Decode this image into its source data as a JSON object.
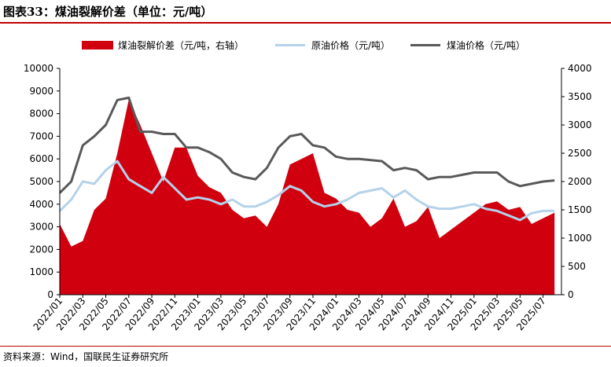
{
  "title": "图表33：煤油裂解价差（单位：元/吨）",
  "source": "资料来源：Wind，国联民生证券研究所",
  "chart_data": {
    "type": "area",
    "grid": false,
    "legend_position": "top",
    "categories": [
      "2022/01",
      "2022/03",
      "2022/05",
      "2022/07",
      "2022/09",
      "2022/11",
      "2023/01",
      "2023/03",
      "2023/05",
      "2023/07",
      "2023/09",
      "2023/11",
      "2024/01",
      "2024/03",
      "2024/05",
      "2024/07",
      "2024/09",
      "2024/11",
      "2025/01",
      "2025/03",
      "2025/05",
      "2025/07"
    ],
    "y_left": {
      "ylim": [
        0,
        10000
      ],
      "ticks": [
        0,
        1000,
        2000,
        3000,
        4000,
        5000,
        6000,
        7000,
        8000,
        9000,
        10000
      ]
    },
    "y_right": {
      "ylim": [
        0,
        4000
      ],
      "ticks": [
        0,
        500,
        1000,
        1500,
        2000,
        2500,
        3000,
        3500,
        4000
      ]
    },
    "series": [
      {
        "name": "煤油裂解价差（元/吨，右轴）",
        "type": "area",
        "axis": "right",
        "color": "#d0000f",
        "x": [
          "2022/01",
          "2022/02",
          "2022/03",
          "2022/04",
          "2022/05",
          "2022/06",
          "2022/07",
          "2022/08",
          "2022/09",
          "2022/10",
          "2022/11",
          "2022/12",
          "2023/01",
          "2023/02",
          "2023/03",
          "2023/04",
          "2023/05",
          "2023/06",
          "2023/07",
          "2023/08",
          "2023/09",
          "2023/10",
          "2023/11",
          "2023/12",
          "2024/01",
          "2024/02",
          "2024/03",
          "2024/04",
          "2024/05",
          "2024/06",
          "2024/07",
          "2024/08",
          "2024/09",
          "2024/10",
          "2024/11",
          "2024/12",
          "2025/01",
          "2025/02",
          "2025/03",
          "2025/04",
          "2025/05",
          "2025/06",
          "2025/07",
          "2025/08"
        ],
        "y": [
          1250,
          850,
          950,
          1500,
          1700,
          2500,
          3450,
          3000,
          2500,
          2000,
          2600,
          2600,
          2100,
          1900,
          1800,
          1500,
          1350,
          1400,
          1200,
          1600,
          2300,
          2400,
          2500,
          1800,
          1700,
          1500,
          1450,
          1200,
          1350,
          1700,
          1200,
          1300,
          1550,
          1000,
          1150,
          1300,
          1450,
          1600,
          1650,
          1500,
          1550,
          1250,
          1350,
          1450
        ]
      },
      {
        "name": "原油价格（元/吨）",
        "type": "line",
        "axis": "left",
        "color": "#b4d2ea",
        "x": [
          "2022/01",
          "2022/02",
          "2022/03",
          "2022/04",
          "2022/05",
          "2022/06",
          "2022/07",
          "2022/08",
          "2022/09",
          "2022/10",
          "2022/11",
          "2022/12",
          "2023/01",
          "2023/02",
          "2023/03",
          "2023/04",
          "2023/05",
          "2023/06",
          "2023/07",
          "2023/08",
          "2023/09",
          "2023/10",
          "2023/11",
          "2023/12",
          "2024/01",
          "2024/02",
          "2024/03",
          "2024/04",
          "2024/05",
          "2024/06",
          "2024/07",
          "2024/08",
          "2024/09",
          "2024/10",
          "2024/11",
          "2024/12",
          "2025/01",
          "2025/02",
          "2025/03",
          "2025/04",
          "2025/05",
          "2025/06",
          "2025/07",
          "2025/08"
        ],
        "y": [
          3700,
          4200,
          5000,
          4900,
          5500,
          5900,
          5100,
          4800,
          4500,
          5200,
          4700,
          4200,
          4300,
          4200,
          4000,
          4200,
          3900,
          3900,
          4100,
          4400,
          4800,
          4600,
          4100,
          3900,
          4000,
          4200,
          4500,
          4600,
          4700,
          4300,
          4600,
          4200,
          3900,
          3800,
          3800,
          3900,
          4000,
          3800,
          3700,
          3500,
          3300,
          3600,
          3700,
          3700
        ]
      },
      {
        "name": "煤油价格（元/吨）",
        "type": "line",
        "axis": "left",
        "color": "#595959",
        "x": [
          "2022/01",
          "2022/02",
          "2022/03",
          "2022/04",
          "2022/05",
          "2022/06",
          "2022/07",
          "2022/08",
          "2022/09",
          "2022/10",
          "2022/11",
          "2022/12",
          "2023/01",
          "2023/02",
          "2023/03",
          "2023/04",
          "2023/05",
          "2023/06",
          "2023/07",
          "2023/08",
          "2023/09",
          "2023/10",
          "2023/11",
          "2023/12",
          "2024/01",
          "2024/02",
          "2024/03",
          "2024/04",
          "2024/05",
          "2024/06",
          "2024/07",
          "2024/08",
          "2024/09",
          "2024/10",
          "2024/11",
          "2024/12",
          "2025/01",
          "2025/02",
          "2025/03",
          "2025/04",
          "2025/05",
          "2025/06",
          "2025/07",
          "2025/08"
        ],
        "y": [
          4500,
          5000,
          6600,
          7000,
          7500,
          8600,
          8700,
          7200,
          7200,
          7100,
          7100,
          6500,
          6500,
          6300,
          6000,
          5400,
          5200,
          5100,
          5600,
          6500,
          7000,
          7100,
          6600,
          6500,
          6100,
          6000,
          6000,
          5950,
          5900,
          5500,
          5600,
          5500,
          5100,
          5200,
          5200,
          5300,
          5400,
          5400,
          5400,
          5000,
          4800,
          4900,
          5000,
          5050
        ]
      }
    ]
  }
}
